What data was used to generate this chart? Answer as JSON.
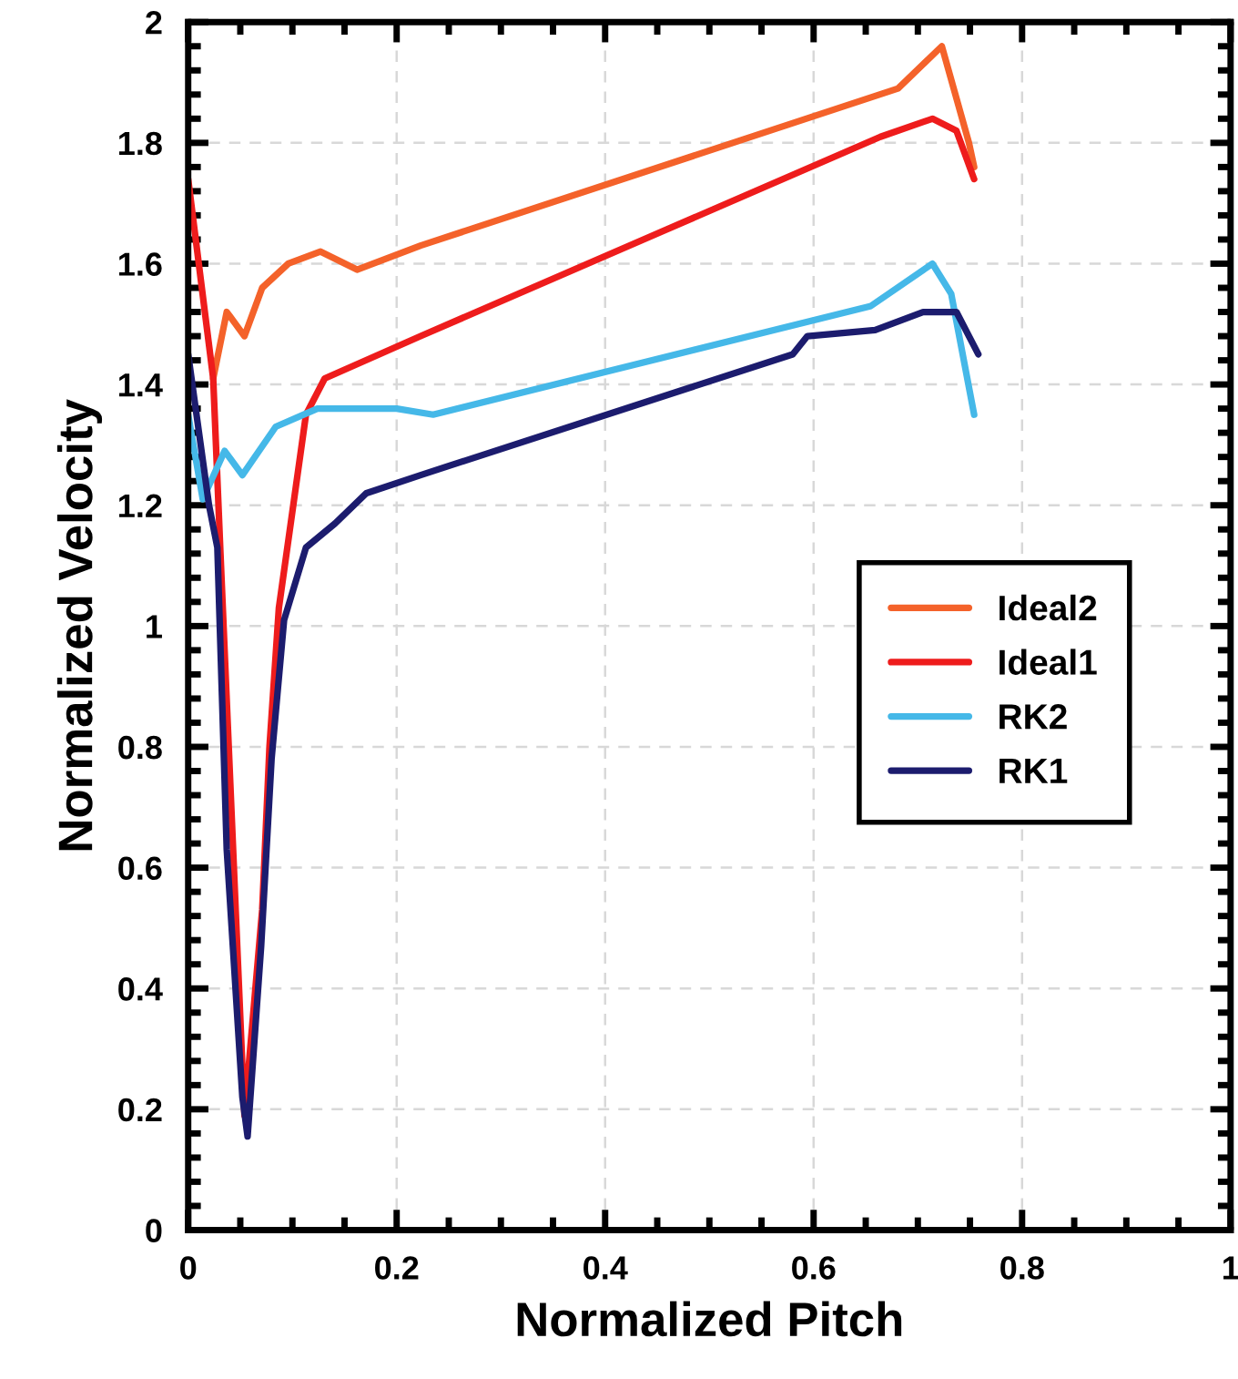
{
  "chart_data": {
    "type": "line",
    "xlabel": "Normalized Pitch",
    "ylabel": "Normalized Velocity",
    "xlim": [
      0,
      1
    ],
    "xticks": [
      0,
      0.2,
      0.4,
      0.6,
      0.8,
      1
    ],
    "ylim": [
      0,
      2
    ],
    "yticks": [
      0,
      0.2,
      0.4,
      0.6,
      0.8,
      1,
      1.2,
      1.4,
      1.6,
      1.8,
      2
    ],
    "grid": true,
    "legend": "right",
    "line_style": "solid",
    "marker": "none",
    "series": [
      {
        "name": "Ideal2",
        "color": "#f4622a",
        "x": [
          0.024,
          0.037,
          0.054,
          0.071,
          0.096,
          0.127,
          0.162,
          0.223,
          0.681,
          0.723,
          0.749,
          0.754
        ],
        "values": [
          1.41,
          1.52,
          1.48,
          1.56,
          1.6,
          1.62,
          1.59,
          1.63,
          1.89,
          1.96,
          1.8,
          1.76
        ]
      },
      {
        "name": "Ideal1",
        "color": "#ee1c1c",
        "x": [
          0,
          0.024,
          0.031,
          0.054,
          0.071,
          0.078,
          0.087,
          0.113,
          0.131,
          0.223,
          0.664,
          0.714,
          0.737,
          0.754
        ],
        "values": [
          1.74,
          1.41,
          1.12,
          0.19,
          0.53,
          0.8,
          1.03,
          1.35,
          1.41,
          1.48,
          1.81,
          1.84,
          1.82,
          1.74
        ]
      },
      {
        "name": "RK2",
        "color": "#45b8e8",
        "x": [
          0,
          0.014,
          0.035,
          0.052,
          0.084,
          0.124,
          0.171,
          0.2,
          0.235,
          0.655,
          0.714,
          0.732,
          0.754
        ],
        "values": [
          1.35,
          1.21,
          1.29,
          1.25,
          1.33,
          1.36,
          1.36,
          1.36,
          1.35,
          1.53,
          1.6,
          1.55,
          1.35
        ]
      },
      {
        "name": "RK1",
        "color": "#1c1c6e",
        "x": [
          0,
          0.02,
          0.028,
          0.037,
          0.052,
          0.057,
          0.07,
          0.08,
          0.092,
          0.113,
          0.141,
          0.171,
          0.223,
          0.58,
          0.594,
          0.659,
          0.705,
          0.737,
          0.758
        ],
        "values": [
          1.45,
          1.2,
          1.13,
          0.63,
          0.22,
          0.155,
          0.47,
          0.78,
          1.01,
          1.13,
          1.17,
          1.22,
          1.25,
          1.45,
          1.48,
          1.49,
          1.52,
          1.52,
          1.45
        ]
      }
    ]
  }
}
